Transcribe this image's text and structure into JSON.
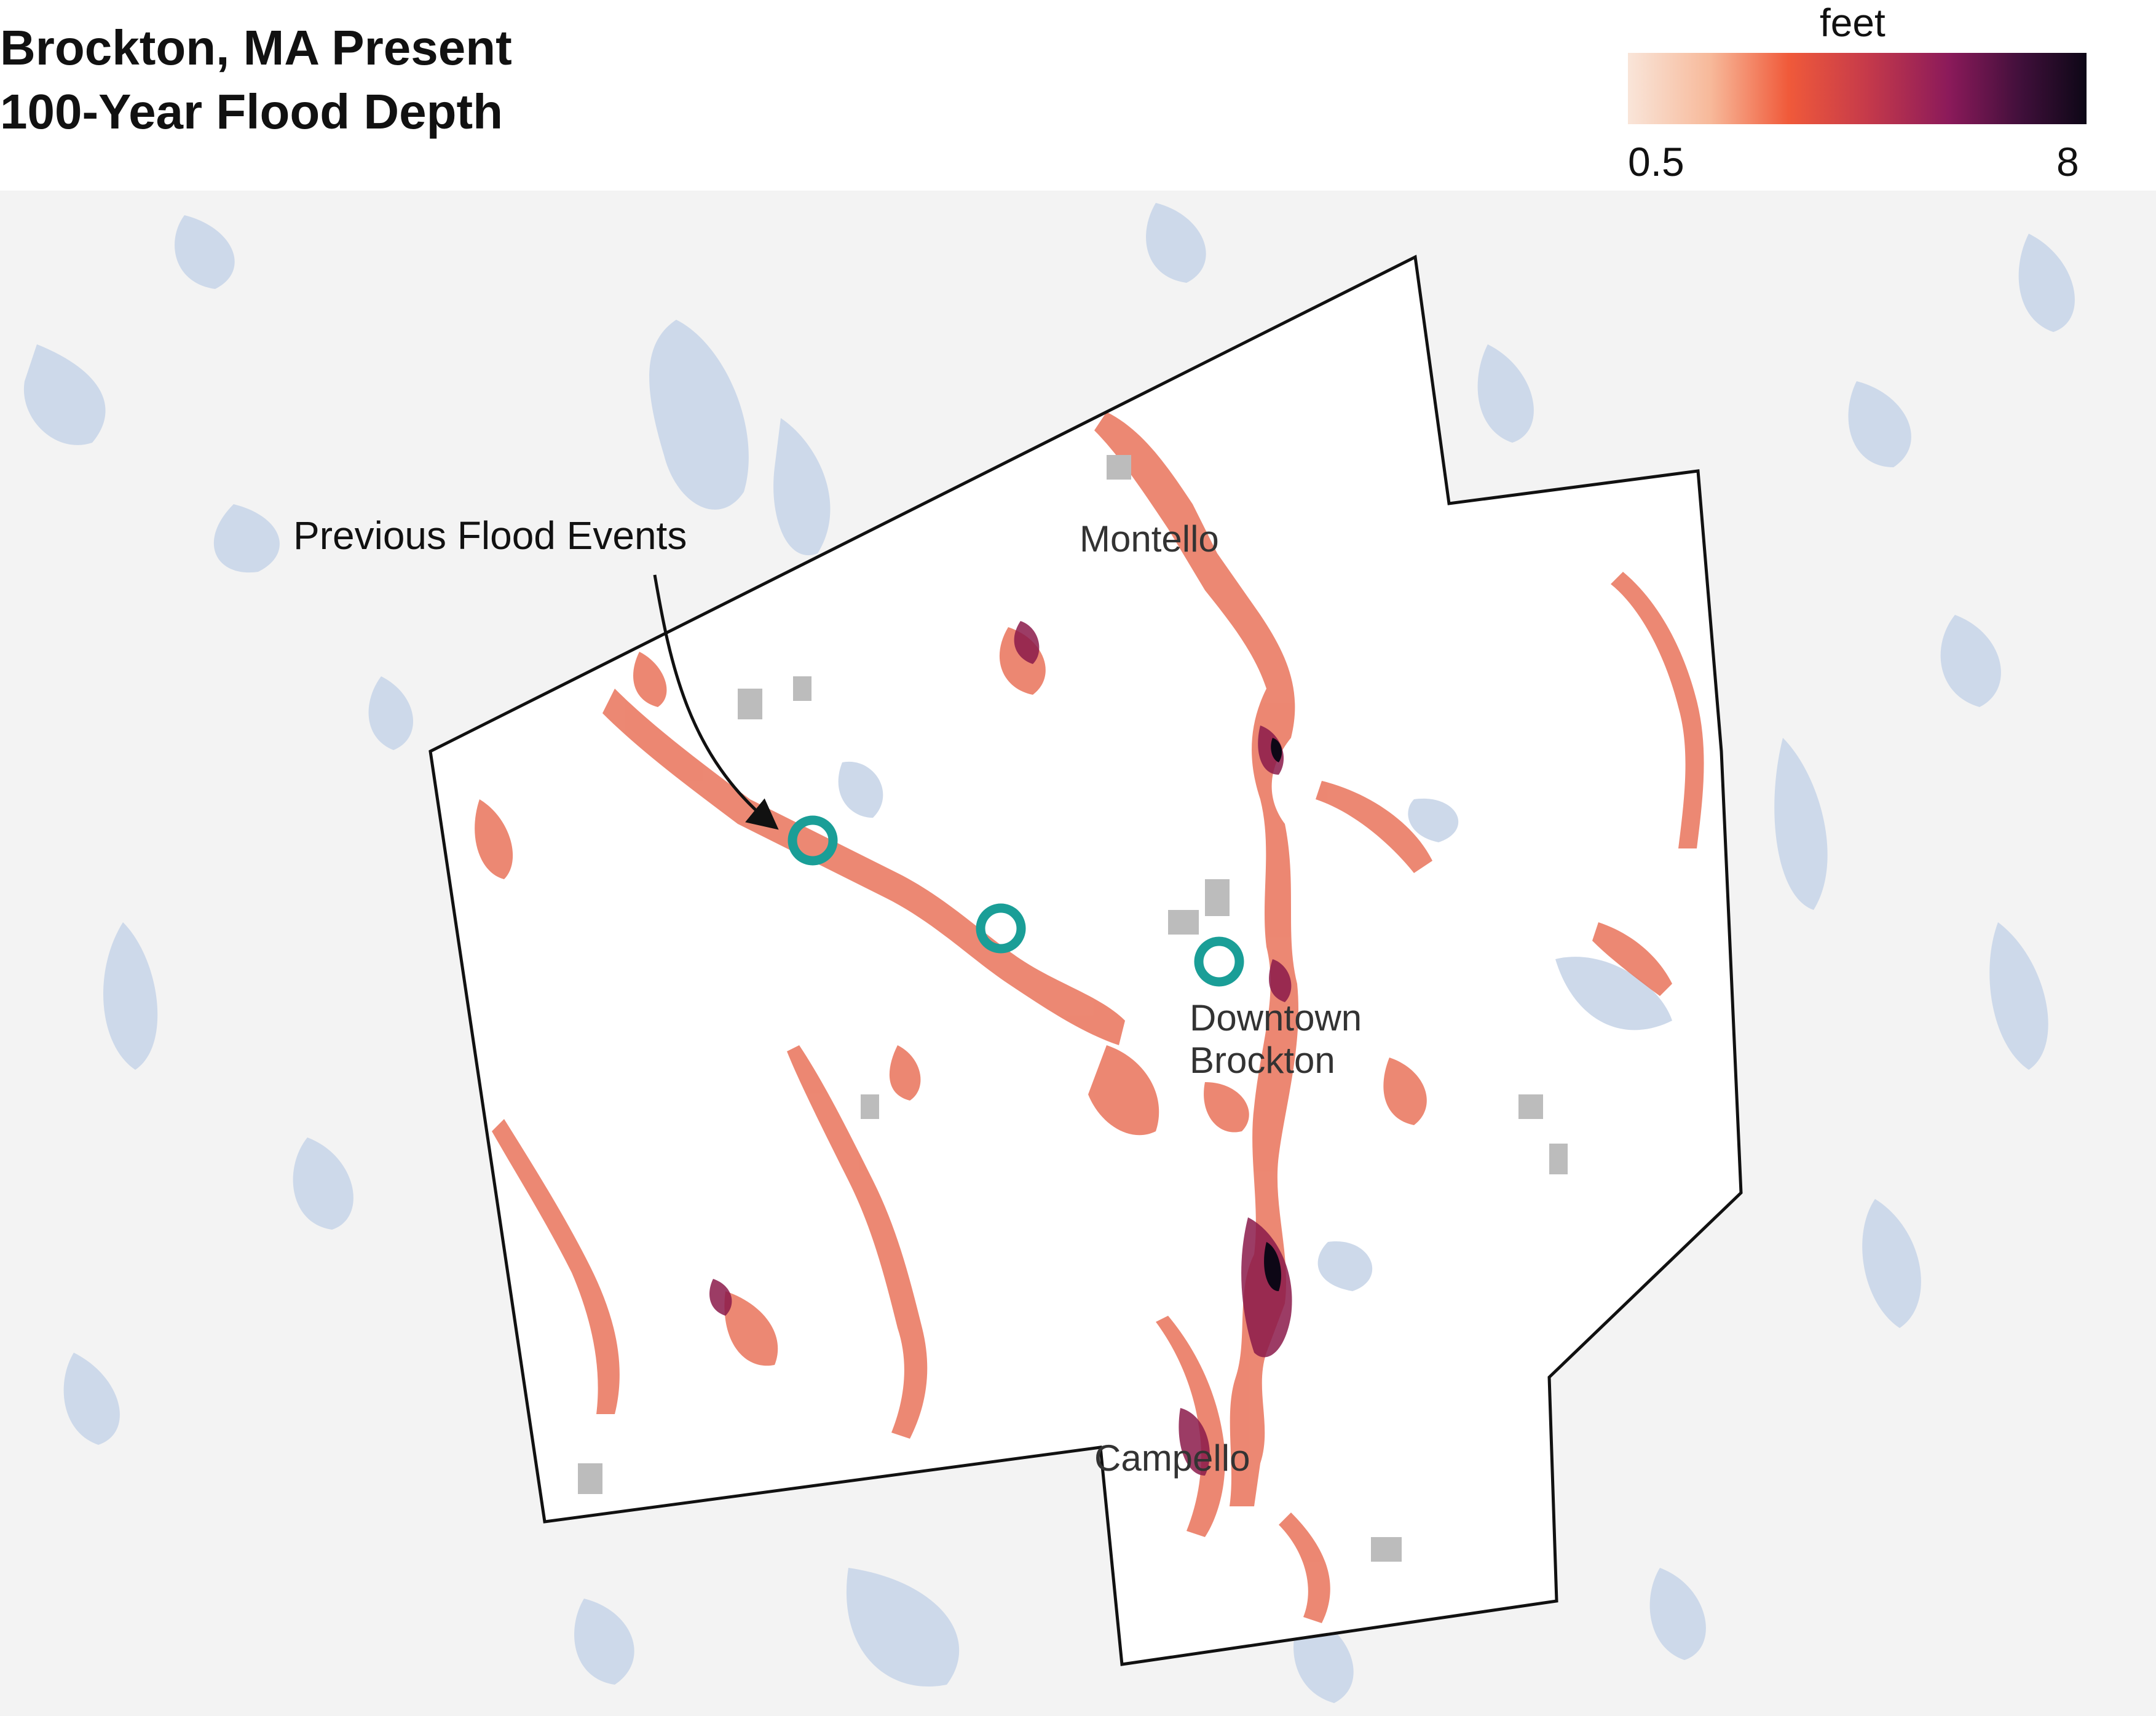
{
  "title_line1": "Brockton, MA Present",
  "title_line2": "100-Year Flood Depth",
  "legend": {
    "unit": "feet",
    "min": "0.5",
    "max": "8",
    "colors": [
      "#f9e5d9",
      "#f7b99a",
      "#f05a3a",
      "#c63a4a",
      "#8b1a5a",
      "#3f0f3a",
      "#0d0716"
    ]
  },
  "places": {
    "montello": "Montello",
    "downtown1": "Downtown",
    "downtown2": "Brockton",
    "campello": "Campello"
  },
  "annotation": "Previous Flood Events",
  "colors": {
    "water": "#cdd9ea",
    "land": "#f3f3f3",
    "city": "#ffffff",
    "boundary": "#111111",
    "marker": "#1a9e97",
    "building": "#bcbcbc"
  }
}
